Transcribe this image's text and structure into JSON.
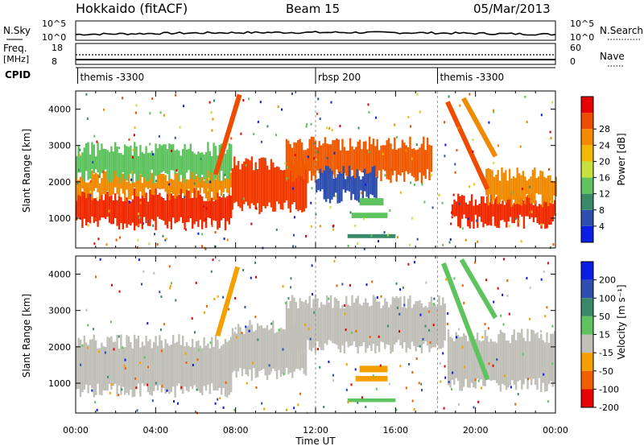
{
  "header": {
    "station": "Hokkaido (fitACF)",
    "beam": "Beam 15",
    "date": "05/Mar/2013"
  },
  "top_panels": {
    "nsky_label": "N.Sky",
    "nsearch_label": "N.Search",
    "nsky_ticks": [
      "10^5",
      "10^0"
    ],
    "nsearch_ticks": [
      "10^5",
      "10^0"
    ],
    "freq_label": "Freq.",
    "freq_unit": "[MHz]",
    "freq_ticks": [
      "18",
      "8"
    ],
    "nave_label": "Nave",
    "nave_ticks": [
      "60",
      "0"
    ],
    "cpid_label": "CPID",
    "cpid_segments": [
      {
        "name": "themis -3300",
        "start_hour": 0.1
      },
      {
        "name": "rbsp 200",
        "start_hour": 12.0
      },
      {
        "name": "themis -3300",
        "start_hour": 18.1
      }
    ]
  },
  "chart_data": [
    {
      "type": "heatmap",
      "title": "",
      "ylabel": "Slant Range [km]",
      "xlabel": "",
      "xlim": [
        0,
        24
      ],
      "ylim": [
        180,
        4500
      ],
      "yticks": [
        1000,
        2000,
        3000,
        4000
      ],
      "colorbar": {
        "label": "Power [dB]",
        "ticks": [
          "4",
          "8",
          "12",
          "16",
          "20",
          "24",
          "28"
        ],
        "colors": [
          "#0a1ee6",
          "#2e4fb0",
          "#3a8a6a",
          "#5fc35f",
          "#c8e03c",
          "#f5b800",
          "#f58a00",
          "#f04c00",
          "#e60000"
        ]
      },
      "bands": [
        {
          "start": 0,
          "end": 7.8,
          "lo": 850,
          "hi": 1650,
          "color": "#f02a00"
        },
        {
          "start": 0,
          "end": 7.8,
          "lo": 1650,
          "hi": 2150,
          "color": "#f08a00"
        },
        {
          "start": 0,
          "end": 7.8,
          "lo": 2150,
          "hi": 2900,
          "color": "#5fc35f"
        },
        {
          "start": 7.8,
          "end": 11.5,
          "lo": 1300,
          "hi": 2500,
          "color": "#f03a00"
        },
        {
          "start": 10.5,
          "end": 17.8,
          "lo": 2150,
          "hi": 3050,
          "color": "#f05a00"
        },
        {
          "start": 12.0,
          "end": 15.0,
          "lo": 1600,
          "hi": 2250,
          "color": "#2e4fb0"
        },
        {
          "start": 18.8,
          "end": 24,
          "lo": 900,
          "hi": 1500,
          "color": "#f02a00"
        },
        {
          "start": 20.5,
          "end": 24,
          "lo": 1500,
          "hi": 2200,
          "color": "#f08a00"
        }
      ],
      "streaks": [
        {
          "t0": 7.0,
          "r0": 2200,
          "t1": 8.2,
          "r1": 4400,
          "color": "#f04c00"
        },
        {
          "t0": 18.6,
          "r0": 4200,
          "t1": 20.6,
          "r1": 1800,
          "color": "#f04c00"
        },
        {
          "t0": 19.4,
          "r0": 4300,
          "t1": 21.0,
          "r1": 2700,
          "color": "#f08a00"
        }
      ],
      "blobs": [
        {
          "start": 14.2,
          "end": 15.4,
          "lo": 1350,
          "hi": 1550,
          "color": "#5fc35f"
        },
        {
          "start": 13.8,
          "end": 15.6,
          "lo": 1000,
          "hi": 1150,
          "color": "#5fc35f"
        },
        {
          "start": 13.6,
          "end": 16.0,
          "lo": 450,
          "hi": 560,
          "color": "#3a8a6a"
        }
      ]
    },
    {
      "type": "heatmap",
      "title": "",
      "ylabel": "Slant Range [km]",
      "xlabel": "Time UT",
      "xlim": [
        0,
        24
      ],
      "ylim": [
        180,
        4500
      ],
      "xticks": [
        "00:00",
        "04:00",
        "08:00",
        "12:00",
        "16:00",
        "20:00",
        "00:00"
      ],
      "yticks": [
        1000,
        2000,
        3000,
        4000
      ],
      "colorbar": {
        "label": "Velocity [m s⁻¹]",
        "ticks": [
          "200",
          "100",
          "50",
          "15",
          "-15",
          "-50",
          "-100",
          "-200"
        ],
        "colors": [
          "#0a1ee6",
          "#2e4fb0",
          "#3a8a6a",
          "#5fc35f",
          "#c0c0b8",
          "#f5a000",
          "#f06000",
          "#e60000"
        ]
      },
      "bands": [
        {
          "start": 0,
          "end": 7.8,
          "lo": 800,
          "hi": 2150,
          "color": "#c0c0b8"
        },
        {
          "start": 7.8,
          "end": 11.5,
          "lo": 1250,
          "hi": 2550,
          "color": "#c0c0b8"
        },
        {
          "start": 10.5,
          "end": 18.5,
          "lo": 2000,
          "hi": 3250,
          "color": "#c0c0b8"
        },
        {
          "start": 18.6,
          "end": 24,
          "lo": 950,
          "hi": 2300,
          "color": "#c0c0b8"
        }
      ],
      "streaks": [
        {
          "t0": 7.1,
          "r0": 2300,
          "t1": 8.1,
          "r1": 4200,
          "color": "#f5a000"
        },
        {
          "t0": 18.4,
          "r0": 4300,
          "t1": 20.6,
          "r1": 1100,
          "color": "#5fc35f"
        },
        {
          "t0": 19.3,
          "r0": 4400,
          "t1": 21.0,
          "r1": 2800,
          "color": "#5fc35f"
        }
      ],
      "blobs": [
        {
          "start": 14.2,
          "end": 15.6,
          "lo": 1300,
          "hi": 1480,
          "color": "#f5a000"
        },
        {
          "start": 14.0,
          "end": 15.6,
          "lo": 1050,
          "hi": 1200,
          "color": "#f5a000"
        },
        {
          "start": 13.6,
          "end": 16.0,
          "lo": 480,
          "hi": 580,
          "color": "#5fc35f"
        }
      ]
    }
  ]
}
